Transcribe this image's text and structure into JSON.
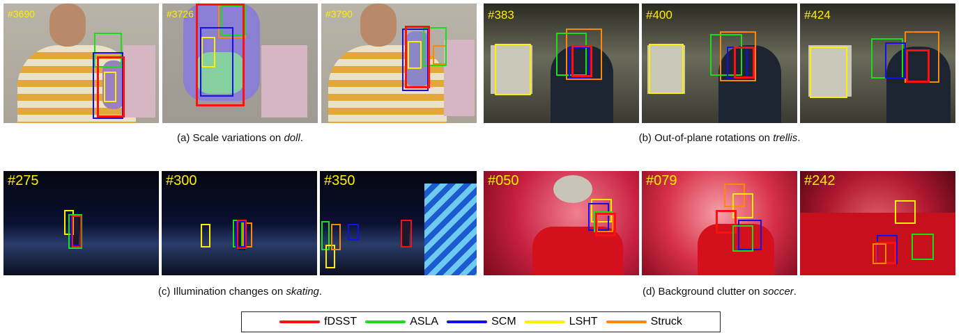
{
  "legend": [
    {
      "label": "fDSST",
      "color": "#ff1010"
    },
    {
      "label": "ASLA",
      "color": "#18e018"
    },
    {
      "label": "SCM",
      "color": "#1010ee"
    },
    {
      "label": "LSHT",
      "color": "#ffee00"
    },
    {
      "label": "Struck",
      "color": "#ff8800"
    }
  ],
  "panels": [
    {
      "caption": {
        "prefix": "(a) Scale variations on ",
        "seq": "doll",
        "suffix": "."
      },
      "frames": [
        {
          "label": "#3690",
          "scene": "doll"
        },
        {
          "label": "#3726",
          "scene": "doll-close"
        },
        {
          "label": "#3790",
          "scene": "doll"
        }
      ]
    },
    {
      "caption": {
        "prefix": "(b) Out-of-plane rotations on ",
        "seq": "trellis",
        "suffix": "."
      },
      "frames": [
        {
          "label": "#383",
          "scene": "trellis"
        },
        {
          "label": "#400",
          "scene": "trellis"
        },
        {
          "label": "#424",
          "scene": "trellis"
        }
      ]
    },
    {
      "caption": {
        "prefix": "(c) Illumination changes on ",
        "seq": "skating",
        "suffix": "."
      },
      "frames": [
        {
          "label": "#275",
          "scene": "skating"
        },
        {
          "label": "#300",
          "scene": "skating"
        },
        {
          "label": "#350",
          "scene": "skating-lights"
        }
      ]
    },
    {
      "caption": {
        "prefix": "(d) Background clutter on ",
        "seq": "soccer",
        "suffix": "."
      },
      "frames": [
        {
          "label": "#050",
          "scene": "soccer"
        },
        {
          "label": "#079",
          "scene": "soccer"
        },
        {
          "label": "#242",
          "scene": "soccer"
        }
      ]
    }
  ]
}
